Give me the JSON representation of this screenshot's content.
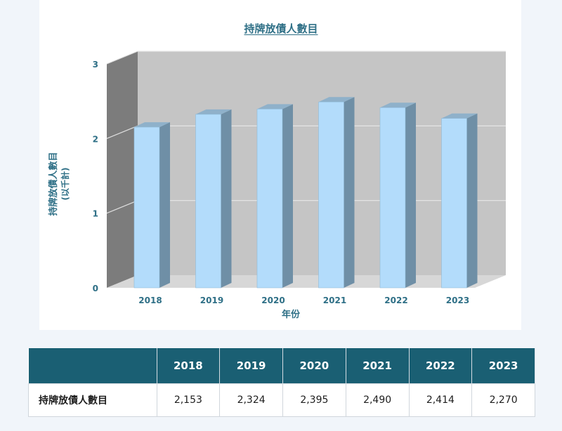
{
  "chart_data": {
    "type": "bar",
    "title": "持牌放債人數目",
    "xlabel": "年份",
    "ylabel": "持牌放債人數目",
    "ylabel_unit": "(以千計)",
    "categories": [
      "2018",
      "2019",
      "2020",
      "2021",
      "2022",
      "2023"
    ],
    "values": [
      2.153,
      2.324,
      2.395,
      2.49,
      2.414,
      2.27
    ],
    "ylim": [
      0,
      3
    ],
    "yticks": [
      "0",
      "1",
      "2",
      "3"
    ],
    "grid": true,
    "colors": {
      "bar_front": "#b3dcfb",
      "bar_side": "#6f8fa6",
      "bar_top": "#8fb1ca",
      "back_wall": "#c5c5c5",
      "side_wall": "#7c7c7c",
      "floor": "#d7d7d7",
      "axis_text": "#2e6f86"
    }
  },
  "table": {
    "header_blank": "",
    "years": [
      "2018",
      "2019",
      "2020",
      "2021",
      "2022",
      "2023"
    ],
    "row_label": "持牌放債人數目",
    "row_values": [
      "2,153",
      "2,324",
      "2,395",
      "2,490",
      "2,414",
      "2,270"
    ],
    "header_bg": "#1a5f73"
  }
}
